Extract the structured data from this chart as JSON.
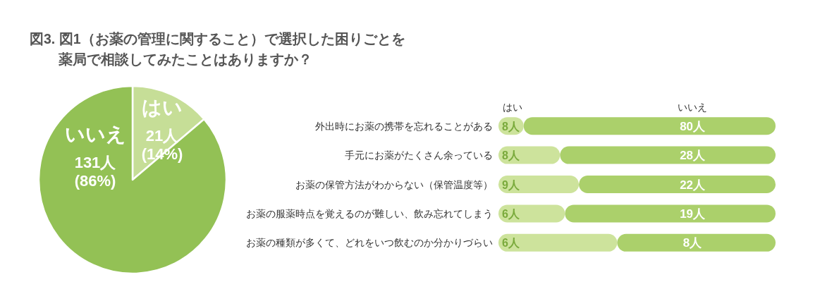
{
  "chart_data": [
    {
      "type": "pie",
      "title": "図3. 図1（お薬の管理に関すること）で選択した困りごとを薬局で相談してみたことはありますか？",
      "categories": [
        "はい",
        "いいえ"
      ],
      "values": [
        21,
        131
      ],
      "colors": [
        "#c6de97",
        "#93c155"
      ],
      "value_labels": [
        "21人\n(14%)",
        "131人\n(86%)"
      ]
    },
    {
      "type": "bar",
      "orientation": "horizontal",
      "stacked": true,
      "categories": [
        "外出時にお薬の携帯を忘れることがある"
      ],
      "series": [
        {
          "name": "はい",
          "color": "#cde39c",
          "values": [
            8
          ],
          "value_labels": [
            "8人"
          ]
        },
        {
          "name": "いいえ",
          "color": "#abd06b",
          "values": [
            80
          ],
          "value_labels": [
            "80人"
          ]
        }
      ]
    },
    {
      "type": "bar",
      "orientation": "horizontal",
      "stacked": true,
      "categories": [
        "手元にお薬がたくさん余っている"
      ],
      "series": [
        {
          "color": "#cde39c",
          "values": [
            8
          ],
          "value_labels": [
            "8人"
          ]
        },
        {
          "color": "#abd06b",
          "values": [
            28
          ],
          "value_labels": [
            "28人"
          ]
        }
      ]
    },
    {
      "type": "bar",
      "orientation": "horizontal",
      "stacked": true,
      "categories": [
        "お薬の保管方法がわからない（保管温度等）"
      ],
      "series": [
        {
          "color": "#cde39c",
          "values": [
            9
          ],
          "value_labels": [
            "9人"
          ]
        },
        {
          "color": "#abd06b",
          "values": [
            22
          ],
          "value_labels": [
            "22人"
          ]
        }
      ]
    },
    {
      "type": "bar",
      "orientation": "horizontal",
      "stacked": true,
      "categories": [
        "お薬の服薬時点を覚えるのが難しい、飲み忘れてしまう"
      ],
      "series": [
        {
          "color": "#cde39c",
          "values": [
            6
          ],
          "value_labels": [
            "6人"
          ]
        },
        {
          "color": "#abd06b",
          "values": [
            19
          ],
          "value_labels": [
            "19人"
          ]
        }
      ]
    },
    {
      "type": "bar",
      "orientation": "horizontal",
      "stacked": true,
      "categories": [
        "お薬の種類が多くて、どれをいつ飲むのか分かりづらい"
      ],
      "series": [
        {
          "color": "#cde39c",
          "values": [
            6
          ],
          "value_labels": [
            "6人"
          ]
        },
        {
          "color": "#abd06b",
          "values": [
            8
          ],
          "value_labels": [
            "8人"
          ]
        }
      ]
    }
  ]
}
